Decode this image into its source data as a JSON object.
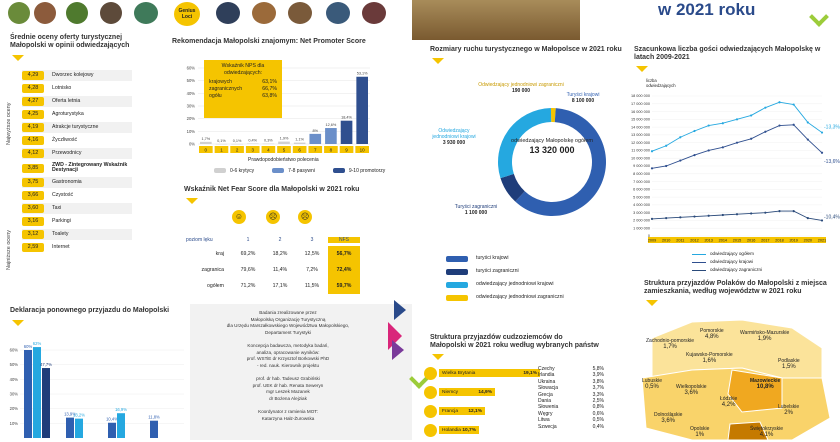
{
  "header": {
    "badge": "Genius Loci",
    "year_title": "w 2021 roku"
  },
  "ratings": {
    "title": "Średnie oceny oferty turystycznej Małopolski w opinii odwiedzających",
    "top_label": "Najwyższe oceny",
    "bottom_label": "Najniższe oceny",
    "items": [
      {
        "score": "4,29",
        "label": "Dworzec kolejowy"
      },
      {
        "score": "4,28",
        "label": "Lotnisko"
      },
      {
        "score": "4,27",
        "label": "Oferta letnia"
      },
      {
        "score": "4,25",
        "label": "Agroturystyka"
      },
      {
        "score": "4,19",
        "label": "Atrakcje turystyczne"
      },
      {
        "score": "4,16",
        "label": "Życzliwość"
      },
      {
        "score": "4,12",
        "label": "Przewodnicy"
      },
      {
        "score": "3,85",
        "label": "ZWD - Zintegrowany Wskaźnik Destynacji"
      },
      {
        "score": "3,75",
        "label": "Gastronomia"
      },
      {
        "score": "3,66",
        "label": "Czystość"
      },
      {
        "score": "3,60",
        "label": "Taxi"
      },
      {
        "score": "3,16",
        "label": "Parkingi"
      },
      {
        "score": "3,12",
        "label": "Toalety"
      },
      {
        "score": "2,59",
        "label": "Internet"
      }
    ]
  },
  "nps": {
    "title": "Rekomendacja Małopolski znajomym: Net Promoter Score",
    "box": {
      "title": "Wskaźnik NPS dla odwiedzających:",
      "rows": [
        {
          "label": "krajowych",
          "value": "63,1%"
        },
        {
          "label": "zagranicznych",
          "value": "66,7%"
        },
        {
          "label": "ogółu",
          "value": "63,8%"
        }
      ]
    },
    "y_ticks": [
      "0%",
      "10%",
      "20%",
      "30%",
      "40%",
      "50%",
      "60%"
    ],
    "xlabel": "Prawdopodobieństwo polecenia",
    "legend": [
      "0-6 krytycy",
      "7-8 pasywni",
      "9-10 promotorzy"
    ],
    "colors": {
      "critics": "#d0d0d0",
      "passive": "#6b8fc9",
      "promoters": "#2f4f8f"
    }
  },
  "chart_data": [
    {
      "type": "bar",
      "title": "Rekomendacja Małopolski znajomym: Net Promoter Score",
      "xlabel": "Prawdopodobieństwo polecenia",
      "ylabel": "",
      "categories": [
        "0",
        "1",
        "2",
        "3",
        "4",
        "5",
        "6",
        "7",
        "8",
        "9",
        "10"
      ],
      "values": [
        1.7,
        0.1,
        0.1,
        0.4,
        0.3,
        1.9,
        1.1,
        8.0,
        12.6,
        18.4,
        53.1
      ],
      "value_labels": [
        "1,7%",
        "0,1%",
        "0,1%",
        "0,4%",
        "0,3%",
        "1,9%",
        "1,1%",
        "8%",
        "12,6%",
        "18,4%",
        "53,1%"
      ],
      "ylim": [
        0,
        60
      ]
    },
    {
      "type": "pie",
      "title": "Rozmiary ruchu turystycznego w Małopolsce w 2021 roku",
      "categories": [
        "turyści krajowi",
        "turyści zagraniczni",
        "odwiedzający jednodniowi krajowi",
        "odwiedzający jednodniowi zagraniczni"
      ],
      "values": [
        8100000,
        1100000,
        3930000,
        190000
      ],
      "center_label": "odwiedzający Małopolskę ogółem",
      "total": "13 320 000"
    },
    {
      "type": "line",
      "title": "Szacunkowa liczba gości odwiedzających Małopolskę w latach 2009-2021",
      "ylabel": "liczba odwiedzających",
      "x": [
        "2009",
        "2010",
        "2011",
        "2012",
        "2013",
        "2014",
        "2015",
        "2016",
        "2017",
        "2018",
        "2019",
        "2020",
        "2021"
      ],
      "ylim": [
        0,
        18000000
      ],
      "series": [
        {
          "name": "odwiedzający ogółem",
          "values": [
            10900000,
            11600000,
            12700000,
            13500000,
            14200000,
            14500000,
            15000000,
            15500000,
            16500000,
            17200000,
            16900000,
            14600000,
            13300000
          ]
        },
        {
          "name": "odwiedzający krajowi",
          "values": [
            8700000,
            9000000,
            9700000,
            10400000,
            11000000,
            11400000,
            12000000,
            12500000,
            13400000,
            14200000,
            14300000,
            12400000,
            10700000
          ]
        },
        {
          "name": "odwiedzający zagraniczni",
          "values": [
            2200000,
            2300000,
            2400000,
            2500000,
            2600000,
            2700000,
            2800000,
            2900000,
            3000000,
            3200000,
            3200000,
            2300000,
            2000000
          ]
        }
      ],
      "annotations": [
        "-13,3%",
        "-13,6%",
        "-10,4%"
      ]
    },
    {
      "type": "bar",
      "title": "Deklaracja ponownego przyjazdu do Małopolski",
      "series": [
        {
          "name": "",
          "values": [
            60,
            13.9,
            10.4,
            11.8
          ]
        },
        {
          "name": "",
          "values": [
            62,
            13.2,
            16.9,
            0
          ]
        },
        {
          "name": "",
          "values": [
            47.7,
            0,
            0,
            0
          ]
        }
      ],
      "value_labels": [
        "60%",
        "62%",
        "47,7%",
        "13,9%",
        "13,2%",
        "10,4%",
        "16,9%",
        "11,8%"
      ],
      "ylim": [
        0,
        60
      ]
    }
  ],
  "nfs": {
    "title": "Wskaźnik Net Fear Score dla Małopolski w 2021 roku",
    "header_label": "poziom lęku",
    "cols": [
      "1",
      "2",
      "3",
      "NFS"
    ],
    "rows": [
      {
        "label": "kraj",
        "v": [
          "69,2%",
          "18,2%",
          "12,5%",
          "56,7%"
        ]
      },
      {
        "label": "zagranica",
        "v": [
          "79,6%",
          "11,4%",
          "7,2%",
          "72,4%"
        ]
      },
      {
        "label": "ogółem",
        "v": [
          "71,2%",
          "17,1%",
          "11,5%",
          "59,7%"
        ]
      }
    ]
  },
  "traffic": {
    "title": "Rozmiary ruchu turystycznego w Małopolsce w 2021 roku",
    "labels": {
      "day_foreign": "Odwiedzający jednodniowi zagraniczni",
      "day_foreign_val": "190 000",
      "tour_dom": "Turyści krajowi",
      "tour_dom_val": "8 100 000",
      "day_dom": "Odwiedzający jednodniowi krajowi",
      "day_dom_val": "3 930 000",
      "tour_for": "Turyści zagraniczni",
      "tour_for_val": "1 100 000",
      "center": "odwiedzający Małopolskę ogółem",
      "total": "13 320 000"
    },
    "legend": [
      "turyści krajowi",
      "turyści zagraniczni",
      "odwiedzający jednodniowi krajowi",
      "odwiedzający jednodniowi zagraniczni"
    ],
    "colors": [
      "#2f5fb0",
      "#1f3d7a",
      "#25a8e0",
      "#f5c400"
    ]
  },
  "line": {
    "title": "Szacunkowa liczba gości odwiedzających Małopolskę w latach 2009-2021",
    "ylabel": "liczba odwiedzających",
    "y_ticks": [
      "18 000 000",
      "17 000 000",
      "16 000 000",
      "15 000 000",
      "14 000 000",
      "13 000 000",
      "12 000 000",
      "11 000 000",
      "10 000 000",
      "9 000 000",
      "8 000 000",
      "7 000 000",
      "6 000 000",
      "5 000 000",
      "4 000 000",
      "3 000 000",
      "2 000 000",
      "1 000 000",
      "0"
    ],
    "legend": [
      "odwiedzający ogółem",
      "odwiedzający krajowi",
      "odwiedzający zagraniczni"
    ],
    "ann": [
      "-13,3%",
      "-13,6%",
      "-10,4%"
    ]
  },
  "revisit": {
    "title": "Deklaracja ponownego przyjazdu do Małopolski",
    "labels": [
      "60%",
      "62%",
      "47,7%",
      "13,9%",
      "13,2%",
      "10,4%",
      "16,9%",
      "11,8%"
    ],
    "y_ticks": [
      "60%",
      "50%",
      "40%",
      "30%",
      "20%",
      "10%"
    ]
  },
  "credits": {
    "lines": [
      "Badania zrealizowane przez",
      "Małopolską Organizację Turystyczną",
      "dla Urzędu Marszałkowskiego Województwa Małopolskiego,",
      "Departament Turystyki",
      "",
      "Koncepcja badawcza, metodyka badań,",
      "analiza, opracowanie wyników:",
      "prof. WSTiE dr Krzysztof Borkowski PhD",
      "- red. nauk. Kierownik projektu",
      "",
      "prof. dr hab. Tadeusz Grabiński",
      "prof. UEK dr hab. Renata Seweryn",
      "mgr Leszek Mazanek",
      "dr Bożena Alejziak",
      "",
      "Koordynator z ramienia MOT:",
      "Katarzyna Hałz-Żurowska"
    ]
  },
  "foreign": {
    "title": "Struktura przyjazdów cudzoziemców do Małopolski w 2021 roku według wybranych państw",
    "bars": [
      {
        "label": "Wielka Brytania",
        "value": "19,1%"
      },
      {
        "label": "Niemcy",
        "value": "14,9%"
      },
      {
        "label": "Francja",
        "value": "12,1%"
      },
      {
        "label": "Holandia",
        "value": "10,7%"
      }
    ],
    "list": [
      {
        "label": "Czechy",
        "value": "5,8%"
      },
      {
        "label": "Irlandia",
        "value": "3,9%"
      },
      {
        "label": "Ukraina",
        "value": "3,8%"
      },
      {
        "label": "Słowacja",
        "value": "3,7%"
      },
      {
        "label": "Grecja",
        "value": "3,3%"
      },
      {
        "label": "Dania",
        "value": "2,5%"
      },
      {
        "label": "Słowenia",
        "value": "0,8%"
      },
      {
        "label": "Węgry",
        "value": "0,6%"
      },
      {
        "label": "Litwa",
        "value": "0,5%"
      },
      {
        "label": "Szwecja",
        "value": "0,4%"
      }
    ]
  },
  "poland": {
    "title": "Struktura przyjazdów Polaków do Małopolski z miejsca zamieszkania, według województw w 2021 roku",
    "regions": [
      {
        "name": "Zachodnio-pomorskie",
        "value": "1,7%"
      },
      {
        "name": "Pomorskie",
        "value": "4,8%"
      },
      {
        "name": "Warmińsko-Mazurskie",
        "value": "1,9%"
      },
      {
        "name": "Kujawsko-Pomorskie",
        "value": "1,6%"
      },
      {
        "name": "Podlaskie",
        "value": "1,5%"
      },
      {
        "name": "Lubuskie",
        "value": "0,5%"
      },
      {
        "name": "Wielkopolskie",
        "value": "3,6%"
      },
      {
        "name": "Mazowieckie",
        "value": "10,8%"
      },
      {
        "name": "Łódzkie",
        "value": "4,2%"
      },
      {
        "name": "Lubelskie",
        "value": "2%"
      },
      {
        "name": "Dolnośląskie",
        "value": "3,6%"
      },
      {
        "name": "Opolskie",
        "value": "1%"
      },
      {
        "name": "Świętokrzyskie",
        "value": "4,1%"
      }
    ]
  }
}
